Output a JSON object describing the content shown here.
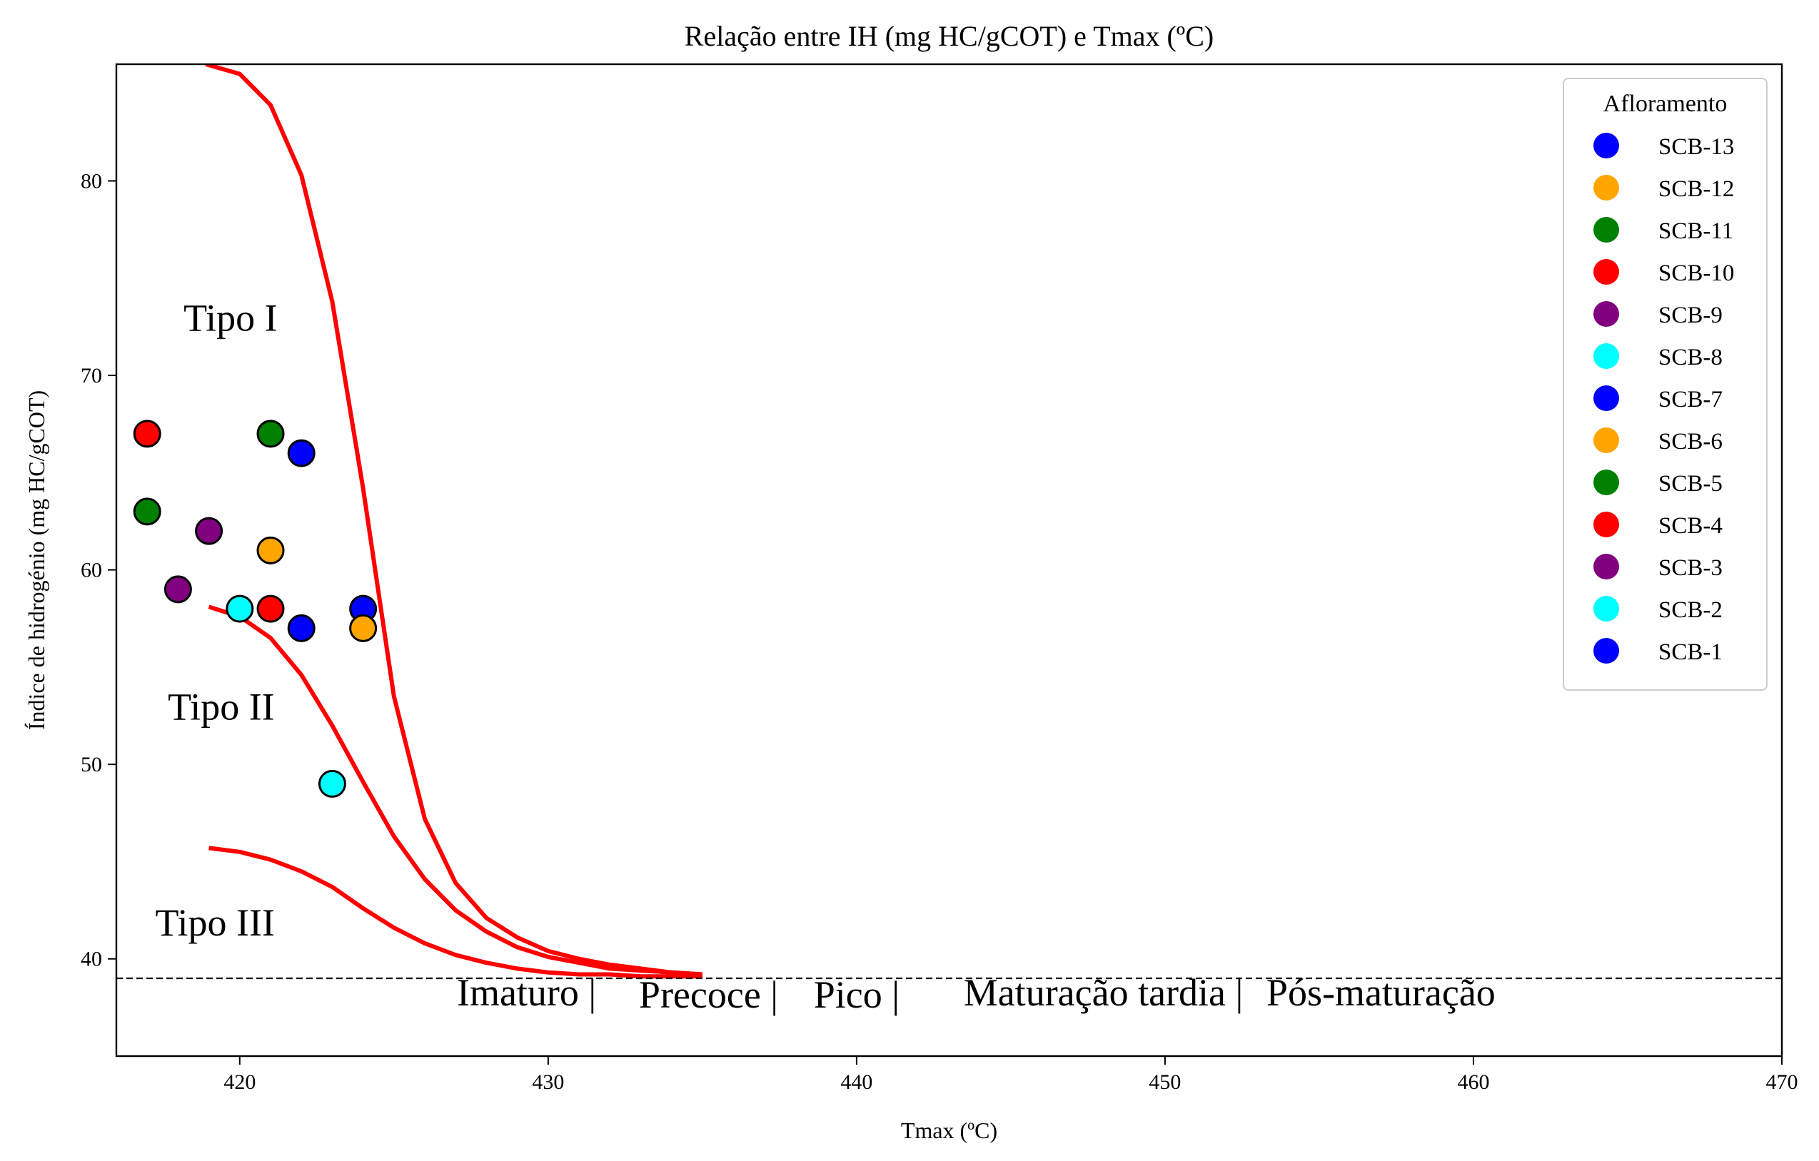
{
  "chart_data": {
    "type": "scatter",
    "title": "Relação entre IH (mg HC/gCOT) e Tmax (ºC)",
    "xlabel": "Tmax (ºC)",
    "ylabel": "Índice de hidrogénio (mg HC/gCOT)",
    "xlim": [
      416,
      470
    ],
    "ylim": [
      35,
      86
    ],
    "xticks": [
      420,
      430,
      440,
      450,
      460,
      470
    ],
    "yticks": [
      40,
      50,
      60,
      70,
      80
    ],
    "xtick_labels": [
      "420",
      "430",
      "440",
      "450",
      "460",
      "470"
    ],
    "ytick_labels": [
      "40",
      "50",
      "60",
      "70",
      "80"
    ],
    "grid": false,
    "legend": {
      "title": "Afloramento",
      "placement": "top-right",
      "entries": [
        "SCB-13",
        "SCB-12",
        "SCB-11",
        "SCB-10",
        "SCB-9",
        "SCB-8",
        "SCB-7",
        "SCB-6",
        "SCB-5",
        "SCB-4",
        "SCB-3",
        "SCB-2",
        "SCB-1"
      ]
    },
    "series": [
      {
        "name": "SCB-13",
        "color": "#0000ff",
        "points": [
          [
            424,
            58
          ]
        ]
      },
      {
        "name": "SCB-12",
        "color": "#ffa500",
        "points": [
          [
            424,
            57
          ]
        ]
      },
      {
        "name": "SCB-11",
        "color": "#008000",
        "points": [
          [
            421,
            67
          ]
        ]
      },
      {
        "name": "SCB-10",
        "color": "#ff0000",
        "points": [
          [
            421,
            58
          ]
        ]
      },
      {
        "name": "SCB-9",
        "color": "#800080",
        "points": [
          [
            419,
            62
          ]
        ]
      },
      {
        "name": "SCB-8",
        "color": "#00ffff",
        "points": [
          [
            423,
            49
          ]
        ]
      },
      {
        "name": "SCB-7",
        "color": "#0000ff",
        "points": [
          [
            422,
            66
          ]
        ]
      },
      {
        "name": "SCB-6",
        "color": "#ffa500",
        "points": [
          [
            421,
            61
          ]
        ]
      },
      {
        "name": "SCB-5",
        "color": "#008000",
        "points": [
          [
            417,
            63
          ]
        ]
      },
      {
        "name": "SCB-4",
        "color": "#ff0000",
        "points": [
          [
            417,
            67
          ]
        ]
      },
      {
        "name": "SCB-3",
        "color": "#800080",
        "points": [
          [
            418,
            59
          ]
        ]
      },
      {
        "name": "SCB-2",
        "color": "#00ffff",
        "points": [
          [
            420,
            58
          ]
        ]
      },
      {
        "name": "SCB-1",
        "color": "#0000ff",
        "points": [
          [
            422,
            57
          ]
        ]
      }
    ],
    "boundary_curves": [
      {
        "color": "#ff0000",
        "points": [
          [
            418.9,
            86
          ],
          [
            420,
            85.5
          ],
          [
            421,
            83.9
          ],
          [
            422,
            80.3
          ],
          [
            423,
            73.8
          ],
          [
            424,
            64.2
          ],
          [
            425,
            53.5
          ],
          [
            426,
            47.2
          ],
          [
            427,
            43.9
          ],
          [
            428,
            42.1
          ],
          [
            429,
            41.1
          ],
          [
            430,
            40.4
          ],
          [
            431,
            40.0
          ],
          [
            432,
            39.7
          ],
          [
            433,
            39.5
          ],
          [
            434,
            39.3
          ],
          [
            435,
            39.2
          ]
        ]
      },
      {
        "color": "#ff0000",
        "points": [
          [
            419,
            58.1
          ],
          [
            420,
            57.6
          ],
          [
            421,
            56.5
          ],
          [
            422,
            54.6
          ],
          [
            423,
            52.0
          ],
          [
            424,
            49.1
          ],
          [
            425,
            46.3
          ],
          [
            426,
            44.1
          ],
          [
            427,
            42.5
          ],
          [
            428,
            41.4
          ],
          [
            429,
            40.6
          ],
          [
            430,
            40.1
          ],
          [
            431,
            39.8
          ],
          [
            432,
            39.5
          ],
          [
            433,
            39.4
          ],
          [
            434,
            39.3
          ],
          [
            435,
            39.2
          ]
        ]
      },
      {
        "color": "#ff0000",
        "points": [
          [
            419,
            45.7
          ],
          [
            420,
            45.5
          ],
          [
            421,
            45.1
          ],
          [
            422,
            44.5
          ],
          [
            423,
            43.7
          ],
          [
            424,
            42.6
          ],
          [
            425,
            41.6
          ],
          [
            426,
            40.8
          ],
          [
            427,
            40.2
          ],
          [
            428,
            39.8
          ],
          [
            429,
            39.5
          ],
          [
            430,
            39.3
          ],
          [
            431,
            39.2
          ],
          [
            432,
            39.2
          ],
          [
            433,
            39.1
          ],
          [
            434,
            39.1
          ],
          [
            435,
            39.1
          ]
        ]
      }
    ],
    "reference_line": {
      "y": 39,
      "style": "dashed",
      "color": "#000000"
    },
    "annotations": {
      "regions": [
        {
          "text": "Tipo I",
          "x": 419.7,
          "y": 72.3
        },
        {
          "text": "Tipo II",
          "x": 419.4,
          "y": 52.3
        },
        {
          "text": "Tipo III",
          "x": 419.2,
          "y": 41.2
        }
      ],
      "stages": [
        {
          "text": "Imaturo |",
          "x": 429.3,
          "y": 37.6
        },
        {
          "text": "Precoce |",
          "x": 435.2,
          "y": 37.5
        },
        {
          "text": "Pico |",
          "x": 440.0,
          "y": 37.5
        },
        {
          "text": "Maturação tardia |",
          "x": 448.0,
          "y": 37.6
        },
        {
          "text": "Pós-maturação",
          "x": 457.0,
          "y": 37.6
        }
      ]
    }
  }
}
